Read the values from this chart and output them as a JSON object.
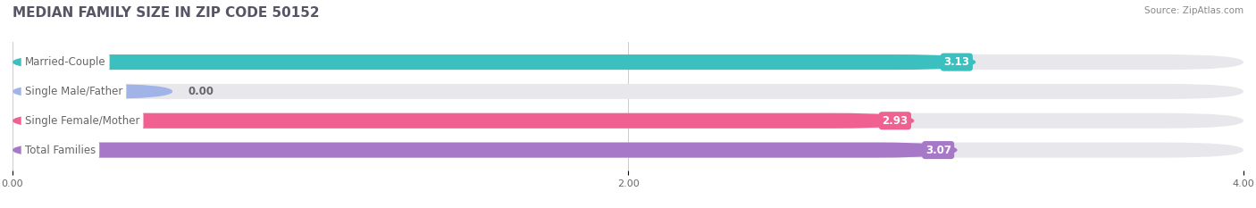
{
  "title": "MEDIAN FAMILY SIZE IN ZIP CODE 50152",
  "source": "Source: ZipAtlas.com",
  "categories": [
    "Married-Couple",
    "Single Male/Father",
    "Single Female/Mother",
    "Total Families"
  ],
  "values": [
    3.13,
    0.0,
    2.93,
    3.07
  ],
  "bar_colors": [
    "#3bbfbf",
    "#a0b4e8",
    "#f06090",
    "#a878c8"
  ],
  "bar_bg_color": "#e8e8ec",
  "xlim": [
    0,
    4.0
  ],
  "xticks": [
    0.0,
    2.0,
    4.0
  ],
  "xtick_labels": [
    "0.00",
    "2.00",
    "4.00"
  ],
  "value_fontsize": 8.5,
  "label_fontsize": 8.5,
  "title_fontsize": 11,
  "bar_height": 0.52,
  "background_color": "#ffffff",
  "grid_color": "#cccccc",
  "text_color": "#666666"
}
